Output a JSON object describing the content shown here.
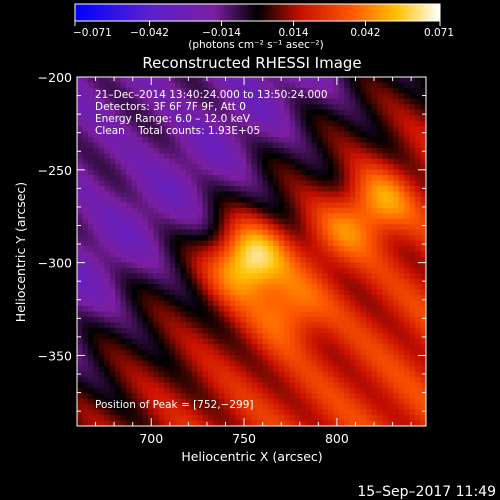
{
  "chart_data": {
    "type": "heatmap",
    "title": "Reconstructed RHESSI Image",
    "xlabel": "Heliocentric X (arcsec)",
    "ylabel": "Heliocentric Y (arcsec)",
    "xlim": [
      660,
      848
    ],
    "ylim": [
      -388,
      -200
    ],
    "x_ticks": [
      700,
      750,
      800
    ],
    "x_tick_labels": [
      "700",
      "750",
      "800"
    ],
    "y_ticks": [
      -200,
      -250,
      -300,
      -350
    ],
    "y_tick_labels": [
      "−200",
      "−250",
      "−300",
      "−350"
    ],
    "colorbar": {
      "range": [
        -0.071,
        0.071
      ],
      "ticks": [
        -0.071,
        -0.042,
        -0.014,
        0.014,
        0.042,
        0.071
      ],
      "tick_labels": [
        "−0.071",
        "−0.042",
        "−0.014",
        "0.014",
        "0.042",
        "0.071"
      ],
      "units": "(photons cm⁻² s⁻¹ asec⁻²)",
      "colormap": "rhessi-rainbow"
    },
    "annotations": [
      "21–Dec–2014 13:40:24.000 to 13:50:24.000",
      "Detectors: 3F 6F 7F 9F, Att 0",
      "Energy Range: 6.0 – 12.0 keV",
      "Clean    Total counts: 1.93E+05"
    ],
    "peak_label": "Position of Peak = [752,−299]",
    "peak": {
      "x": 752,
      "y": -299
    },
    "secondary_sources": [
      {
        "x": 822,
        "y": -268
      },
      {
        "x": 774,
        "y": -325
      },
      {
        "x": 800,
        "y": -285
      }
    ],
    "grid": false
  },
  "footer": {
    "timestamp": "15–Sep–2017 11:49"
  },
  "colors": {
    "background": "#000000",
    "foreground": "#ffffff"
  }
}
